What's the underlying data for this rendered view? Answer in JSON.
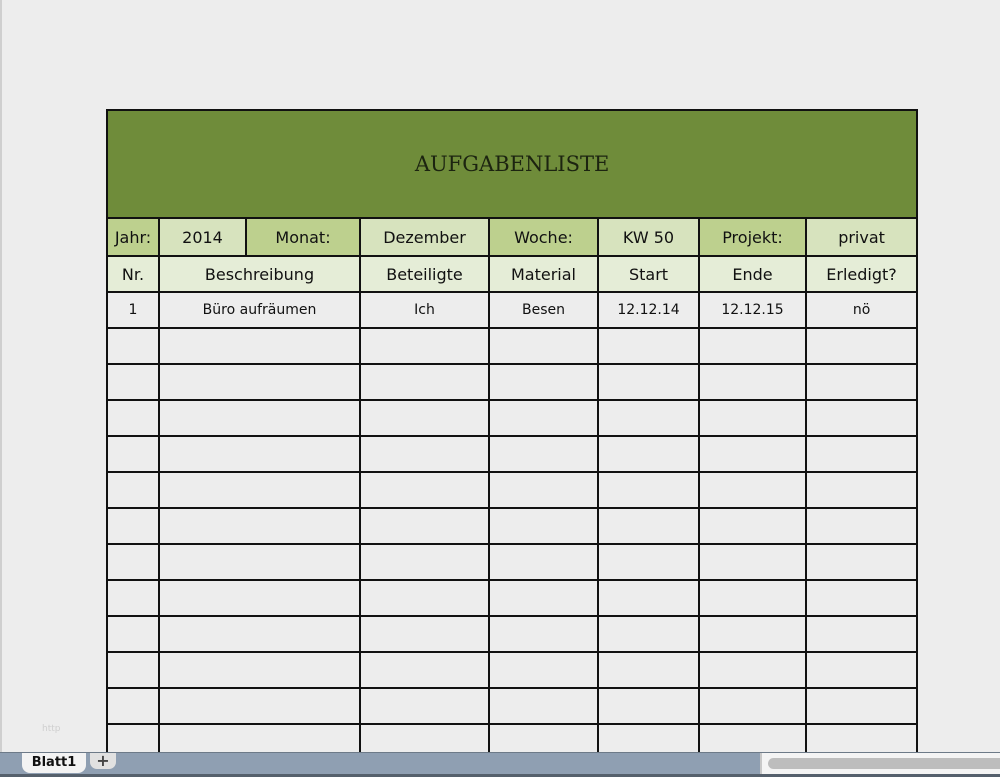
{
  "title": "AUFGABENLISTE",
  "meta": {
    "year_label": "Jahr:",
    "year": "2014",
    "month_label": "Monat:",
    "month": "Dezember",
    "week_label": "Woche:",
    "week": "KW 50",
    "project_label": "Projekt:",
    "project": "privat"
  },
  "columns": [
    "Nr.",
    "Beschreibung",
    "Beteiligte",
    "Material",
    "Start",
    "Ende",
    "Erledigt?"
  ],
  "rows": [
    [
      "1",
      "Büro aufräumen",
      "Ich",
      "Besen",
      "12.12.14",
      "12.12.15",
      "nö"
    ]
  ],
  "watermark": "http",
  "sheet_tabs": [
    "Blatt1"
  ],
  "add_sheet_label": "+",
  "colors": {
    "title_bg": "#6f8c3a",
    "label_bg": "#bdd08e",
    "value_bg": "#d7e3be",
    "header_bg": "#e5edd7"
  }
}
